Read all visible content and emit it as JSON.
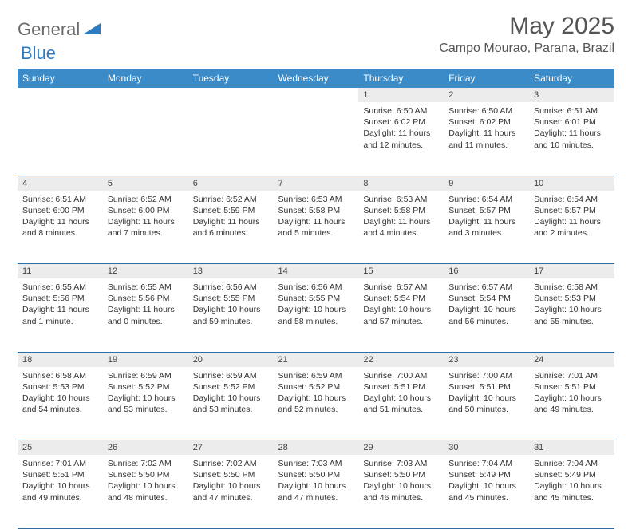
{
  "logo": {
    "general": "General",
    "blue": "Blue"
  },
  "title": "May 2025",
  "location": "Campo Mourao, Parana, Brazil",
  "weekdays": [
    "Sunday",
    "Monday",
    "Tuesday",
    "Wednesday",
    "Thursday",
    "Friday",
    "Saturday"
  ],
  "colors": {
    "header_bg": "#3b8bc8",
    "header_text": "#ffffff",
    "daynum_bg": "#ececec",
    "border": "#2f6fa8",
    "logo_gray": "#6b6b6b",
    "logo_blue": "#2f7bbf"
  },
  "weeks": [
    [
      null,
      null,
      null,
      null,
      {
        "n": "1",
        "sr": "Sunrise: 6:50 AM",
        "ss": "Sunset: 6:02 PM",
        "d1": "Daylight: 11 hours",
        "d2": "and 12 minutes."
      },
      {
        "n": "2",
        "sr": "Sunrise: 6:50 AM",
        "ss": "Sunset: 6:02 PM",
        "d1": "Daylight: 11 hours",
        "d2": "and 11 minutes."
      },
      {
        "n": "3",
        "sr": "Sunrise: 6:51 AM",
        "ss": "Sunset: 6:01 PM",
        "d1": "Daylight: 11 hours",
        "d2": "and 10 minutes."
      }
    ],
    [
      {
        "n": "4",
        "sr": "Sunrise: 6:51 AM",
        "ss": "Sunset: 6:00 PM",
        "d1": "Daylight: 11 hours",
        "d2": "and 8 minutes."
      },
      {
        "n": "5",
        "sr": "Sunrise: 6:52 AM",
        "ss": "Sunset: 6:00 PM",
        "d1": "Daylight: 11 hours",
        "d2": "and 7 minutes."
      },
      {
        "n": "6",
        "sr": "Sunrise: 6:52 AM",
        "ss": "Sunset: 5:59 PM",
        "d1": "Daylight: 11 hours",
        "d2": "and 6 minutes."
      },
      {
        "n": "7",
        "sr": "Sunrise: 6:53 AM",
        "ss": "Sunset: 5:58 PM",
        "d1": "Daylight: 11 hours",
        "d2": "and 5 minutes."
      },
      {
        "n": "8",
        "sr": "Sunrise: 6:53 AM",
        "ss": "Sunset: 5:58 PM",
        "d1": "Daylight: 11 hours",
        "d2": "and 4 minutes."
      },
      {
        "n": "9",
        "sr": "Sunrise: 6:54 AM",
        "ss": "Sunset: 5:57 PM",
        "d1": "Daylight: 11 hours",
        "d2": "and 3 minutes."
      },
      {
        "n": "10",
        "sr": "Sunrise: 6:54 AM",
        "ss": "Sunset: 5:57 PM",
        "d1": "Daylight: 11 hours",
        "d2": "and 2 minutes."
      }
    ],
    [
      {
        "n": "11",
        "sr": "Sunrise: 6:55 AM",
        "ss": "Sunset: 5:56 PM",
        "d1": "Daylight: 11 hours",
        "d2": "and 1 minute."
      },
      {
        "n": "12",
        "sr": "Sunrise: 6:55 AM",
        "ss": "Sunset: 5:56 PM",
        "d1": "Daylight: 11 hours",
        "d2": "and 0 minutes."
      },
      {
        "n": "13",
        "sr": "Sunrise: 6:56 AM",
        "ss": "Sunset: 5:55 PM",
        "d1": "Daylight: 10 hours",
        "d2": "and 59 minutes."
      },
      {
        "n": "14",
        "sr": "Sunrise: 6:56 AM",
        "ss": "Sunset: 5:55 PM",
        "d1": "Daylight: 10 hours",
        "d2": "and 58 minutes."
      },
      {
        "n": "15",
        "sr": "Sunrise: 6:57 AM",
        "ss": "Sunset: 5:54 PM",
        "d1": "Daylight: 10 hours",
        "d2": "and 57 minutes."
      },
      {
        "n": "16",
        "sr": "Sunrise: 6:57 AM",
        "ss": "Sunset: 5:54 PM",
        "d1": "Daylight: 10 hours",
        "d2": "and 56 minutes."
      },
      {
        "n": "17",
        "sr": "Sunrise: 6:58 AM",
        "ss": "Sunset: 5:53 PM",
        "d1": "Daylight: 10 hours",
        "d2": "and 55 minutes."
      }
    ],
    [
      {
        "n": "18",
        "sr": "Sunrise: 6:58 AM",
        "ss": "Sunset: 5:53 PM",
        "d1": "Daylight: 10 hours",
        "d2": "and 54 minutes."
      },
      {
        "n": "19",
        "sr": "Sunrise: 6:59 AM",
        "ss": "Sunset: 5:52 PM",
        "d1": "Daylight: 10 hours",
        "d2": "and 53 minutes."
      },
      {
        "n": "20",
        "sr": "Sunrise: 6:59 AM",
        "ss": "Sunset: 5:52 PM",
        "d1": "Daylight: 10 hours",
        "d2": "and 53 minutes."
      },
      {
        "n": "21",
        "sr": "Sunrise: 6:59 AM",
        "ss": "Sunset: 5:52 PM",
        "d1": "Daylight: 10 hours",
        "d2": "and 52 minutes."
      },
      {
        "n": "22",
        "sr": "Sunrise: 7:00 AM",
        "ss": "Sunset: 5:51 PM",
        "d1": "Daylight: 10 hours",
        "d2": "and 51 minutes."
      },
      {
        "n": "23",
        "sr": "Sunrise: 7:00 AM",
        "ss": "Sunset: 5:51 PM",
        "d1": "Daylight: 10 hours",
        "d2": "and 50 minutes."
      },
      {
        "n": "24",
        "sr": "Sunrise: 7:01 AM",
        "ss": "Sunset: 5:51 PM",
        "d1": "Daylight: 10 hours",
        "d2": "and 49 minutes."
      }
    ],
    [
      {
        "n": "25",
        "sr": "Sunrise: 7:01 AM",
        "ss": "Sunset: 5:51 PM",
        "d1": "Daylight: 10 hours",
        "d2": "and 49 minutes."
      },
      {
        "n": "26",
        "sr": "Sunrise: 7:02 AM",
        "ss": "Sunset: 5:50 PM",
        "d1": "Daylight: 10 hours",
        "d2": "and 48 minutes."
      },
      {
        "n": "27",
        "sr": "Sunrise: 7:02 AM",
        "ss": "Sunset: 5:50 PM",
        "d1": "Daylight: 10 hours",
        "d2": "and 47 minutes."
      },
      {
        "n": "28",
        "sr": "Sunrise: 7:03 AM",
        "ss": "Sunset: 5:50 PM",
        "d1": "Daylight: 10 hours",
        "d2": "and 47 minutes."
      },
      {
        "n": "29",
        "sr": "Sunrise: 7:03 AM",
        "ss": "Sunset: 5:50 PM",
        "d1": "Daylight: 10 hours",
        "d2": "and 46 minutes."
      },
      {
        "n": "30",
        "sr": "Sunrise: 7:04 AM",
        "ss": "Sunset: 5:49 PM",
        "d1": "Daylight: 10 hours",
        "d2": "and 45 minutes."
      },
      {
        "n": "31",
        "sr": "Sunrise: 7:04 AM",
        "ss": "Sunset: 5:49 PM",
        "d1": "Daylight: 10 hours",
        "d2": "and 45 minutes."
      }
    ]
  ]
}
